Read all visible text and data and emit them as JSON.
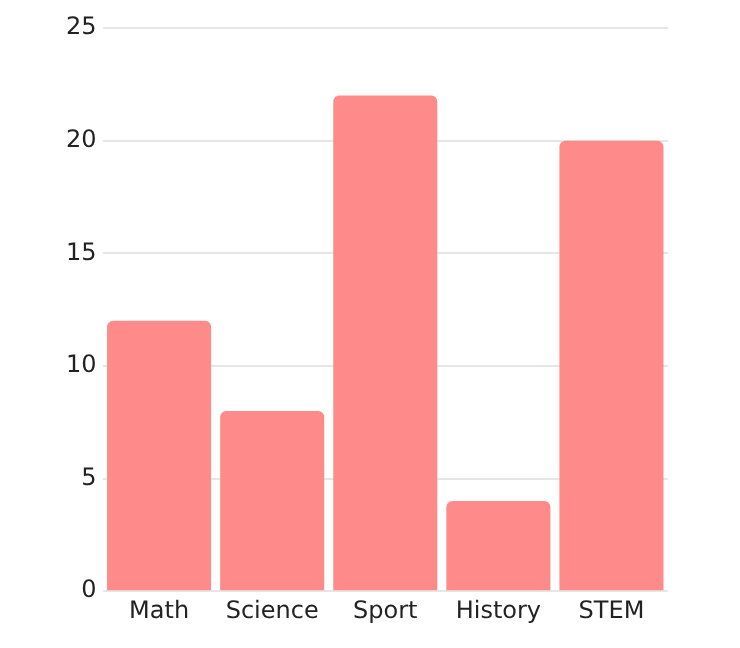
{
  "chart_data": {
    "type": "bar",
    "categories": [
      "Math",
      "Science",
      "Sport",
      "History",
      "STEM"
    ],
    "values": [
      12,
      8,
      22,
      4,
      20
    ],
    "color": "#ff8a8a",
    "ylim": [
      0,
      25
    ],
    "yticks": [
      0,
      5,
      10,
      15,
      20,
      25
    ],
    "grid": "y",
    "legend": false
  }
}
